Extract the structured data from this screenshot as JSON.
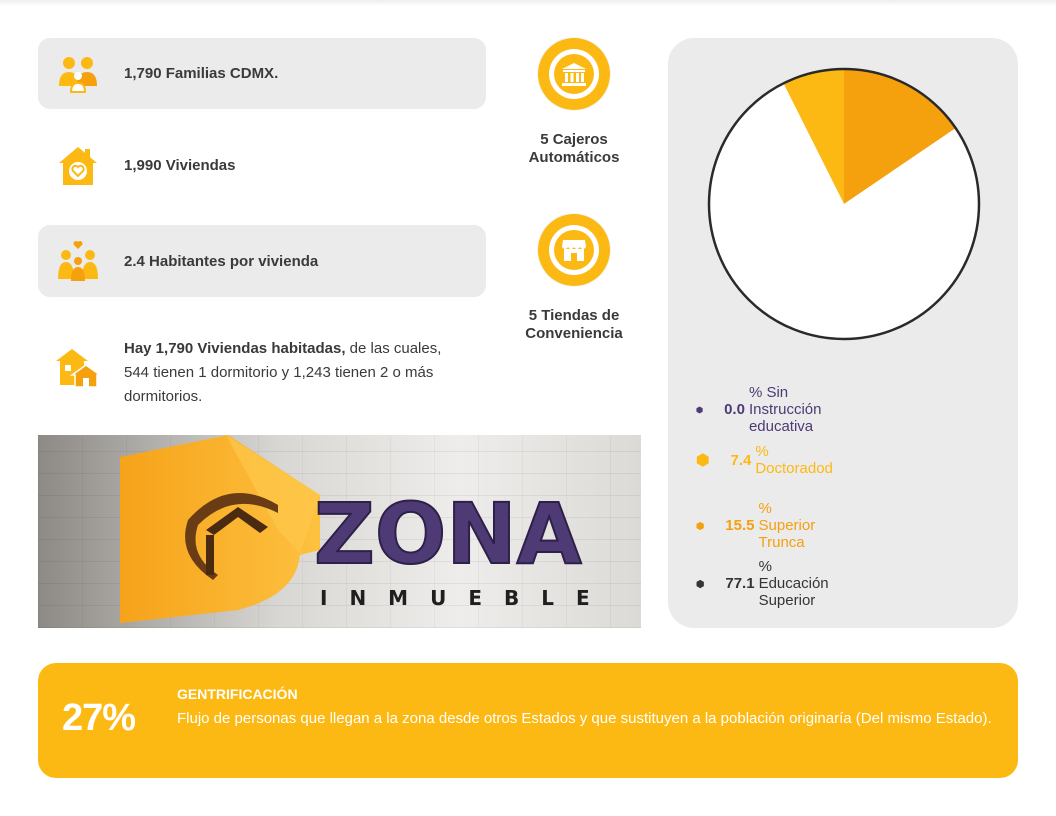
{
  "stats": {
    "familias": "1,790 Familias CDMX.",
    "viviendas": "1,990 Viviendas",
    "habitantes": "2.4 Habitantes por vivienda",
    "desc_bold": "Hay 1,790 Viviendas habitadas,",
    "desc_rest": " de las cuales, 544 tienen 1 dormitorio y 1,243 tienen 2 o más dormitorios."
  },
  "amenities": [
    {
      "label": "5 Cajeros Automáticos",
      "icon": "bank-icon"
    },
    {
      "label": "5 Tiendas de Conveniencia",
      "icon": "store-icon"
    }
  ],
  "photo": {
    "brand_main": "ZONA",
    "brand_sub": "INMUEBLE"
  },
  "colors": {
    "accent": "#fdb913",
    "orange": "#f5a00d",
    "purple": "#4e3a74",
    "dark": "#353535",
    "panel": "#ebebeb"
  },
  "chart_data": {
    "type": "pie",
    "slices": [
      {
        "name": "Sin Instrucción educativa",
        "value": 0.0,
        "color": "#4e3a74"
      },
      {
        "name": "Doctoradod",
        "value": 7.4,
        "color": "#fdb913"
      },
      {
        "name": "Superior Trunca",
        "value": 15.5,
        "color": "#f5a00d"
      },
      {
        "name": "Educación Superior",
        "value": 77.1,
        "color": "#ffffff"
      }
    ],
    "legend": [
      {
        "value": "0.0",
        "sep": "%",
        "label": "Sin Instrucción educativa",
        "color": "#4e3a74",
        "text_color": "#4e3a74"
      },
      {
        "value": "7.4",
        "sep": "%",
        "label": "Doctoradod",
        "color": "#fdb913",
        "text_color": "#fdb913"
      },
      {
        "value": "15.5",
        "sep": "%",
        "label": "Superior Trunca",
        "color": "#f5a00d",
        "text_color": "#f5a00d"
      },
      {
        "value": "77.1",
        "sep": "%",
        "label": "Educación Superior",
        "color": "#353535",
        "text_color": "#353535"
      }
    ]
  },
  "banner": {
    "percent": "27%",
    "title": "GENTRIFICACIÓN",
    "body": "Flujo de personas que llegan a la zona desde otros Estados y que sustituyen a la población originaría (Del mismo Estado)."
  }
}
